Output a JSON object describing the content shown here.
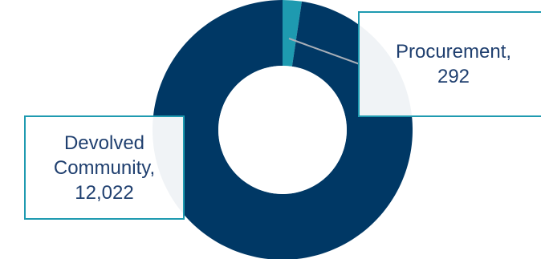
{
  "colors": {
    "devolved": "#003865",
    "procurement": "#1e9ab0",
    "callout_border": "#1e9ab0",
    "label_text": "#1f3f6f",
    "leader_line": "#a7aeb7",
    "shadow": "#e7eaf2"
  },
  "chart_data": {
    "type": "pie",
    "style": "donut",
    "categories": [
      "Procurement",
      "Devolved Community"
    ],
    "values": [
      292,
      12022
    ],
    "labels": {
      "procurement_name": "Procurement,",
      "procurement_value": "292",
      "devolved_name_1": "Devolved",
      "devolved_name_2": "Community,",
      "devolved_value": "12,022"
    },
    "title": "",
    "legend": "none"
  }
}
